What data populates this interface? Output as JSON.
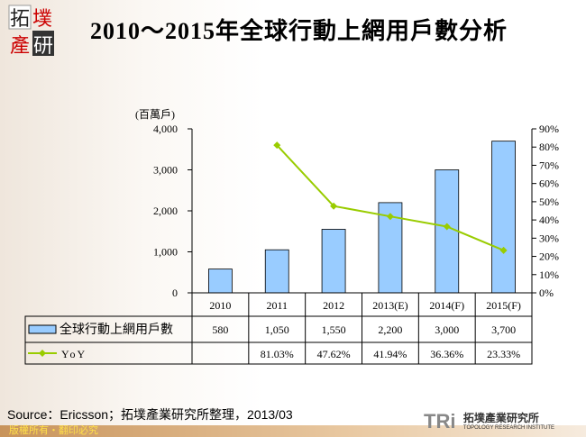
{
  "title": "2010～2015年全球行動上網用戶數分析",
  "logo_text": "拓墣產研",
  "source": "Source：Ericsson；拓墣產業研究所整理，2013/03",
  "copyright": "版權所有‧翻印必究",
  "institute": {
    "mark": "TRi",
    "name": "拓墣產業研究所",
    "name_en": "TOPOLOGY RESEARCH INSTITUTE"
  },
  "colors": {
    "bar": "#99ccff",
    "line": "#99cc00"
  },
  "chart_data": {
    "type": "bar+line",
    "categories": [
      "2010",
      "2011",
      "2012",
      "2013(E)",
      "2014(F)",
      "2015(F)"
    ],
    "ylabel": "(百萬戶)",
    "ylim": [
      0,
      4000
    ],
    "yticks": [
      "0",
      "1,000",
      "2,000",
      "3,000",
      "4,000"
    ],
    "y2lim": [
      0,
      90
    ],
    "y2ticks": [
      "0%",
      "10%",
      "20%",
      "30%",
      "40%",
      "50%",
      "60%",
      "70%",
      "80%",
      "90%"
    ],
    "series": [
      {
        "name": "全球行動上網用戶數",
        "type": "bar",
        "values": [
          580,
          1050,
          1550,
          2200,
          3000,
          3700
        ],
        "labels": [
          "580",
          "1,050",
          "1,550",
          "2,200",
          "3,000",
          "3,700"
        ]
      },
      {
        "name": "YoY",
        "type": "line",
        "axis": "right",
        "values": [
          null,
          81.03,
          47.62,
          41.94,
          36.36,
          23.33
        ],
        "labels": [
          "",
          "81.03%",
          "47.62%",
          "41.94%",
          "36.36%",
          "23.33%"
        ]
      }
    ],
    "legend": "data-table"
  }
}
